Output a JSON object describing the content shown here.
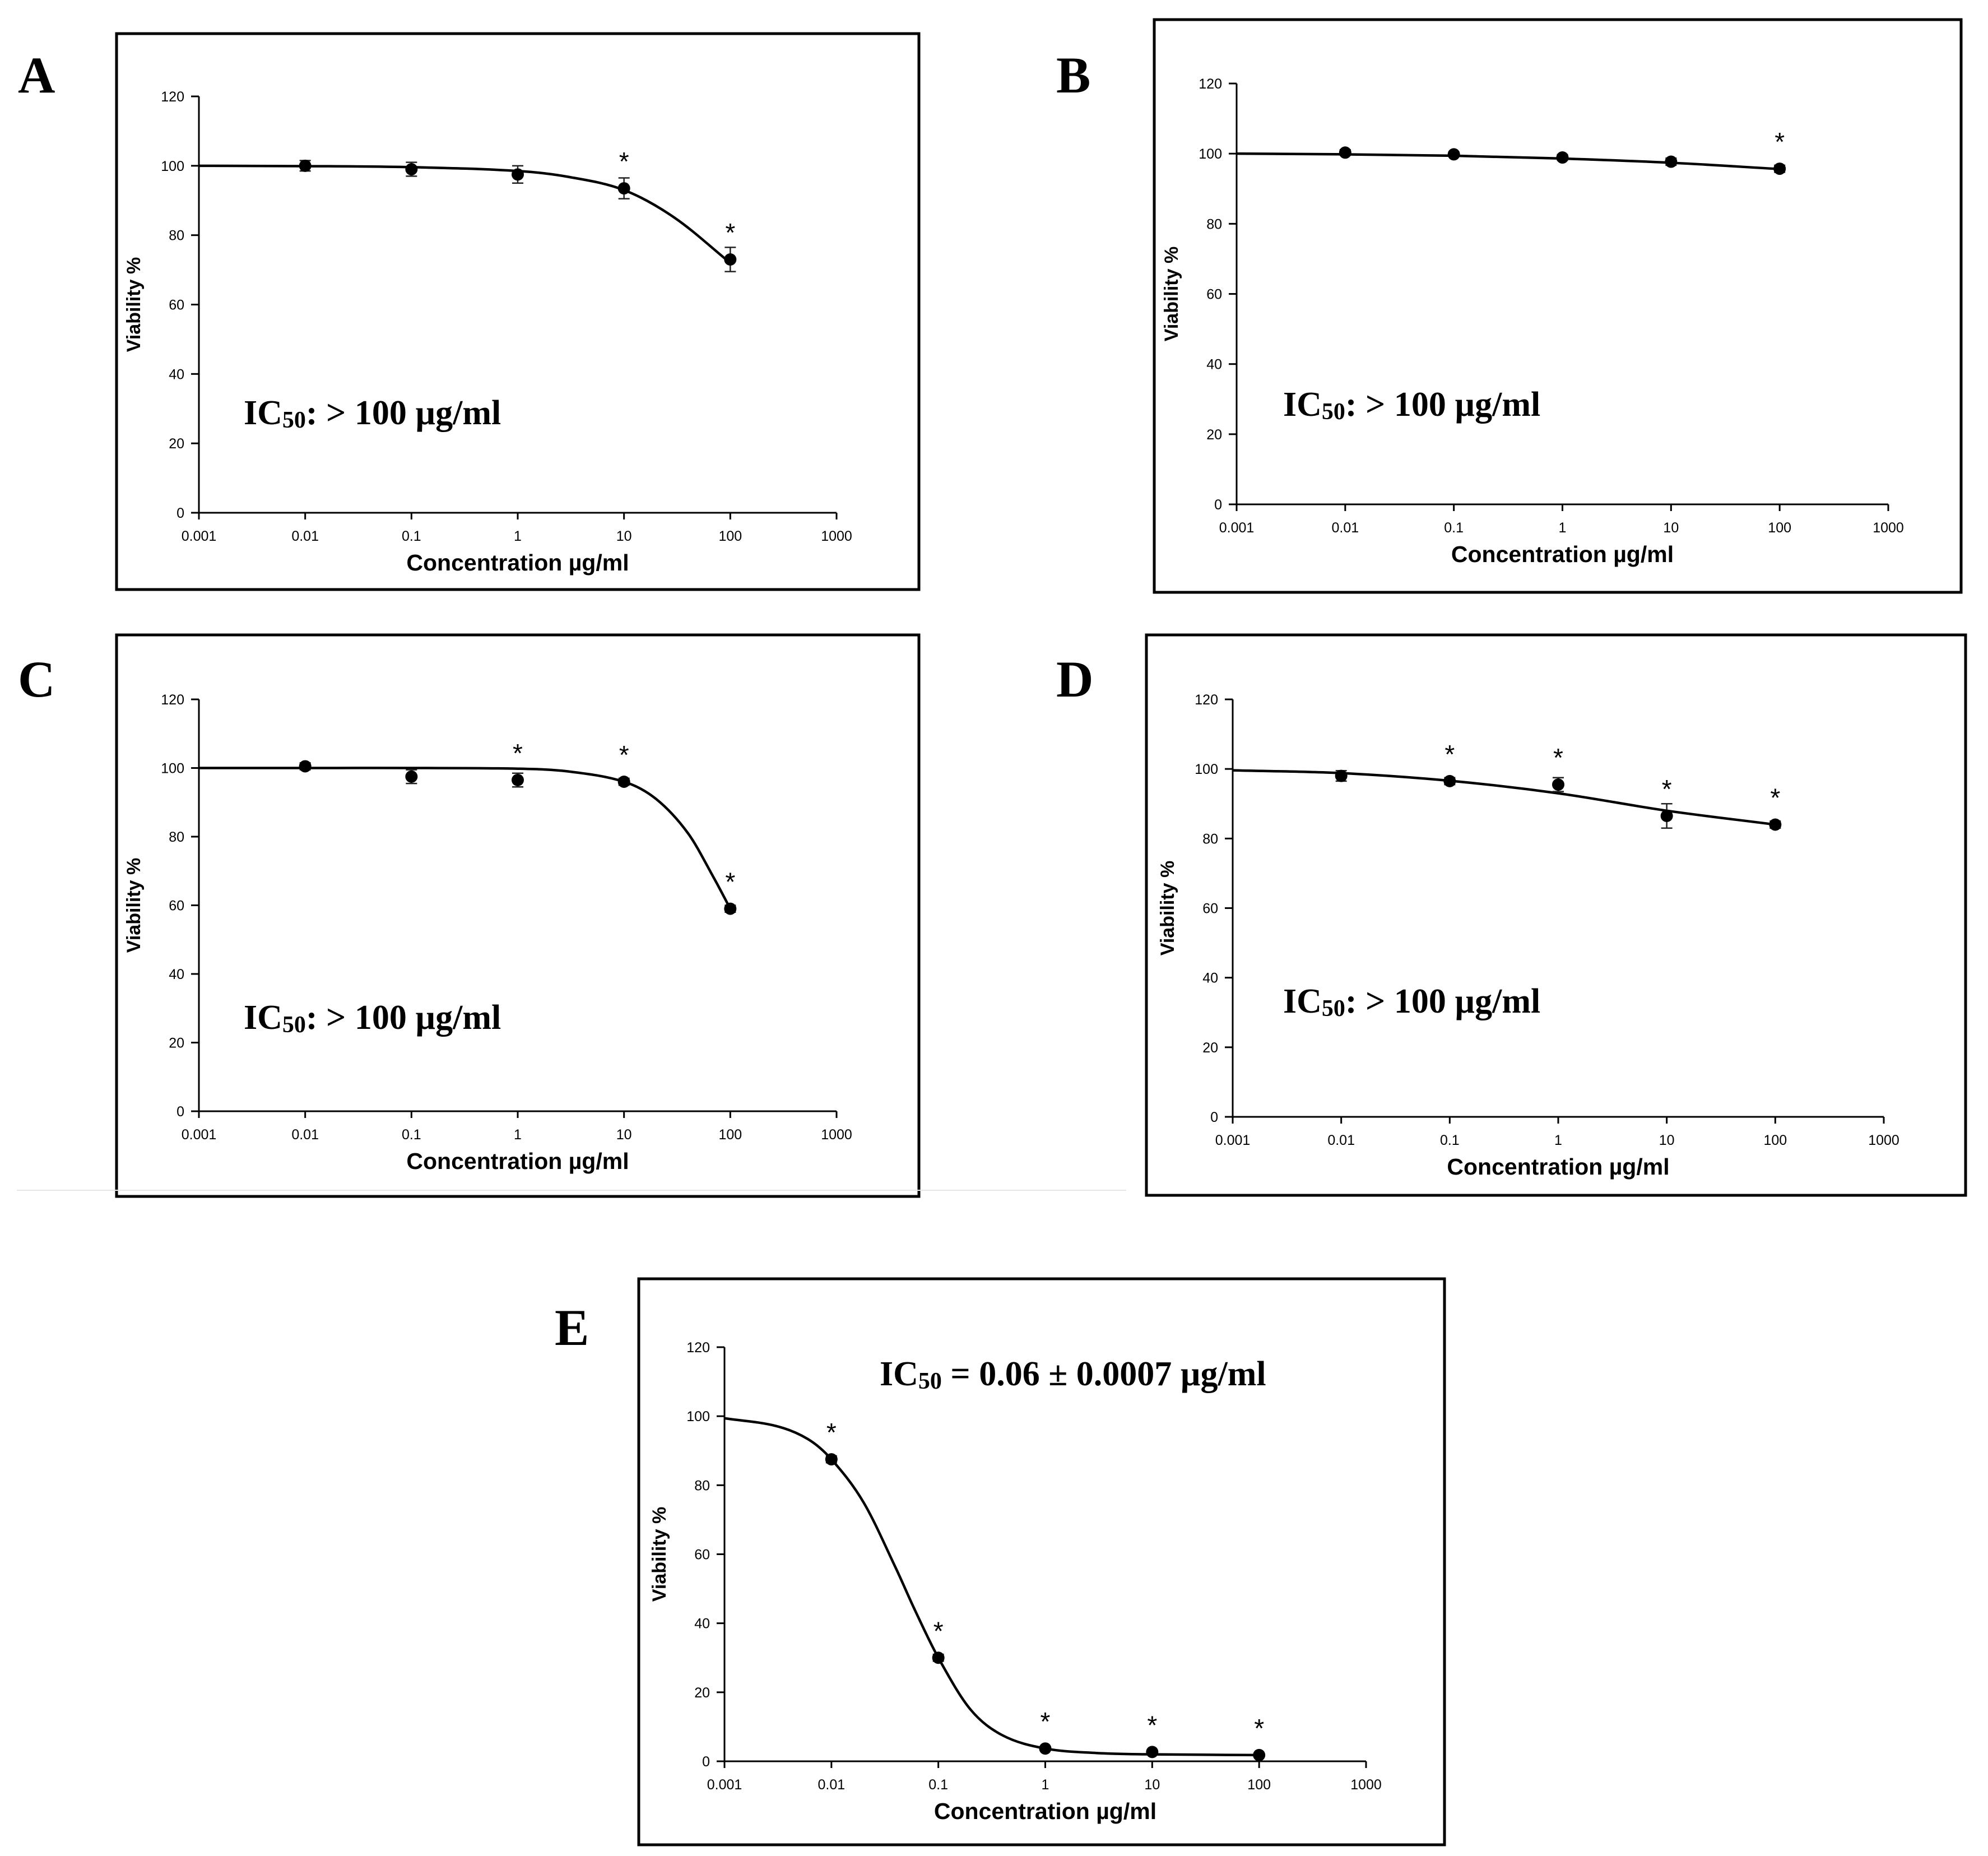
{
  "figure": {
    "panels": [
      {
        "label": "A",
        "annotation": {
          "main": "IC",
          "sub": "50",
          "rest": ": > 100 µg/ml"
        }
      },
      {
        "label": "B",
        "annotation": {
          "main": "IC",
          "sub": "50",
          "rest": ": > 100 µg/ml"
        }
      },
      {
        "label": "C",
        "annotation": {
          "main": "IC",
          "sub": "50",
          "rest": ": > 100 µg/ml"
        }
      },
      {
        "label": "D",
        "annotation": {
          "main": "IC",
          "sub": "50",
          "rest": ": > 100 µg/ml"
        }
      },
      {
        "label": "E",
        "annotation": {
          "main": "IC",
          "sub": "50",
          "rest": " = 0.06 ± 0.0007 µg/ml"
        }
      }
    ]
  },
  "chart_data": [
    {
      "type": "scatter",
      "panel": "A",
      "xlabel": "Concentration µg/ml",
      "ylabel": "Viability %",
      "xscale": "log",
      "xlim": [
        0.001,
        1000
      ],
      "ylim": [
        0,
        120
      ],
      "xticks": [
        "0.001",
        "0.01",
        "0.1",
        "1",
        "10",
        "100",
        "1000"
      ],
      "yticks": [
        "0",
        "20",
        "40",
        "60",
        "80",
        "100",
        "120"
      ],
      "grid": false,
      "x": [
        0.01,
        0.1,
        1,
        10,
        100
      ],
      "y": [
        100,
        99,
        97.5,
        93.5,
        73
      ],
      "error": [
        1.5,
        2,
        2.5,
        3,
        3.5
      ],
      "significant": [
        false,
        false,
        false,
        true,
        true
      ],
      "marker_label": "*",
      "fit": {
        "x": [
          0.001,
          0.01,
          0.1,
          1,
          3,
          10,
          30,
          100
        ],
        "y": [
          100,
          99.9,
          99.6,
          98.5,
          96.8,
          93,
          85,
          72
        ]
      }
    },
    {
      "type": "scatter",
      "panel": "B",
      "xlabel": "Concentration µg/ml",
      "ylabel": "Viability %",
      "xscale": "log",
      "xlim": [
        0.001,
        1000
      ],
      "ylim": [
        0,
        120
      ],
      "xticks": [
        "0.001",
        "0.01",
        "0.1",
        "1",
        "10",
        "100",
        "1000"
      ],
      "yticks": [
        "0",
        "20",
        "40",
        "60",
        "80",
        "100",
        "120"
      ],
      "grid": false,
      "x": [
        0.01,
        0.1,
        1,
        10,
        100
      ],
      "y": [
        100.3,
        99.8,
        98.9,
        97.7,
        95.7
      ],
      "error": [
        0.8,
        0.6,
        0.8,
        1,
        1
      ],
      "significant": [
        false,
        false,
        false,
        false,
        true
      ],
      "marker_label": "*",
      "fit": {
        "x": [
          0.001,
          0.01,
          0.1,
          1,
          10,
          100
        ],
        "y": [
          100,
          99.8,
          99.4,
          98.6,
          97.4,
          95.6
        ]
      }
    },
    {
      "type": "scatter",
      "panel": "C",
      "xlabel": "Concentration µg/ml",
      "ylabel": "Viability %",
      "xscale": "log",
      "xlim": [
        0.001,
        1000
      ],
      "ylim": [
        0,
        120
      ],
      "xticks": [
        "0.001",
        "0.01",
        "0.1",
        "1",
        "10",
        "100",
        "1000"
      ],
      "yticks": [
        "0",
        "20",
        "40",
        "60",
        "80",
        "100",
        "120"
      ],
      "grid": false,
      "x": [
        0.01,
        0.1,
        1,
        10,
        100
      ],
      "y": [
        100.5,
        97.5,
        96.5,
        96,
        59
      ],
      "error": [
        1,
        2,
        2,
        1,
        1
      ],
      "significant": [
        false,
        false,
        true,
        true,
        true
      ],
      "marker_label": "*",
      "fit": {
        "x": [
          0.001,
          0.01,
          0.1,
          1,
          3,
          10,
          20,
          40,
          70,
          100
        ],
        "y": [
          100,
          100,
          100,
          99.8,
          99,
          96,
          91,
          81,
          68,
          59
        ]
      }
    },
    {
      "type": "scatter",
      "panel": "D",
      "xlabel": "Concentration µg/ml",
      "ylabel": "Viability %",
      "xscale": "log",
      "xlim": [
        0.001,
        1000
      ],
      "ylim": [
        0,
        120
      ],
      "xticks": [
        "0.001",
        "0.01",
        "0.1",
        "1",
        "10",
        "100",
        "1000"
      ],
      "yticks": [
        "0",
        "20",
        "40",
        "60",
        "80",
        "100",
        "120"
      ],
      "grid": false,
      "x": [
        0.01,
        0.1,
        1,
        10,
        100
      ],
      "y": [
        98,
        96.5,
        95.5,
        86.5,
        84
      ],
      "error": [
        1.5,
        1,
        2,
        3.5,
        1
      ],
      "significant": [
        false,
        true,
        true,
        true,
        true
      ],
      "marker_label": "*",
      "fit": {
        "x": [
          0.001,
          0.01,
          0.1,
          1,
          10,
          100
        ],
        "y": [
          99.6,
          98.8,
          96.6,
          93,
          88,
          84
        ]
      }
    },
    {
      "type": "scatter",
      "panel": "E",
      "xlabel": "Concentration µg/ml",
      "ylabel": "Viability %",
      "xscale": "log",
      "xlim": [
        0.001,
        1000
      ],
      "ylim": [
        0,
        120
      ],
      "xticks": [
        "0.001",
        "0.01",
        "0.1",
        "1",
        "10",
        "100",
        "1000"
      ],
      "yticks": [
        "0",
        "20",
        "40",
        "60",
        "80",
        "100",
        "120"
      ],
      "grid": false,
      "x": [
        0.01,
        0.1,
        1,
        10,
        100
      ],
      "y": [
        87.5,
        30,
        3.7,
        2.7,
        1.8
      ],
      "error": [
        1,
        1,
        0.5,
        0.5,
        0.3
      ],
      "significant": [
        true,
        true,
        true,
        true,
        true
      ],
      "marker_label": "*",
      "fit": {
        "x": [
          0.001,
          0.003,
          0.006,
          0.01,
          0.02,
          0.04,
          0.06,
          0.1,
          0.2,
          0.4,
          1,
          3,
          10,
          100
        ],
        "y": [
          99.4,
          97.2,
          93.4,
          87.5,
          75,
          56,
          44,
          30,
          15,
          7.5,
          3.7,
          2.4,
          2,
          1.8
        ]
      }
    }
  ]
}
